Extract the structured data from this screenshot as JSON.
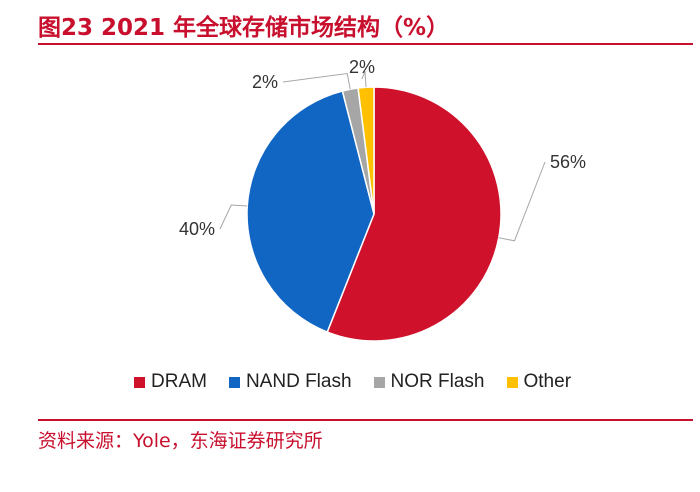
{
  "header": {
    "title": "图23  2021 年全球存储市场结构（%）"
  },
  "footer": {
    "source": "资料来源：Yole，东海证券研究所"
  },
  "colors": {
    "accent": "#c8102e"
  },
  "chart_data": {
    "type": "pie",
    "title": "2021 年全球存储市场结构（%）",
    "legend_position": "bottom",
    "slices": [
      {
        "name": "DRAM",
        "value": 56,
        "label": "56%",
        "color": "#d0112b"
      },
      {
        "name": "NAND Flash",
        "value": 40,
        "label": "40%",
        "color": "#1166c4"
      },
      {
        "name": "NOR Flash",
        "value": 2,
        "label": "2%",
        "color": "#a6a6a6"
      },
      {
        "name": "Other",
        "value": 2,
        "label": "2%",
        "color": "#ffc000"
      }
    ]
  }
}
